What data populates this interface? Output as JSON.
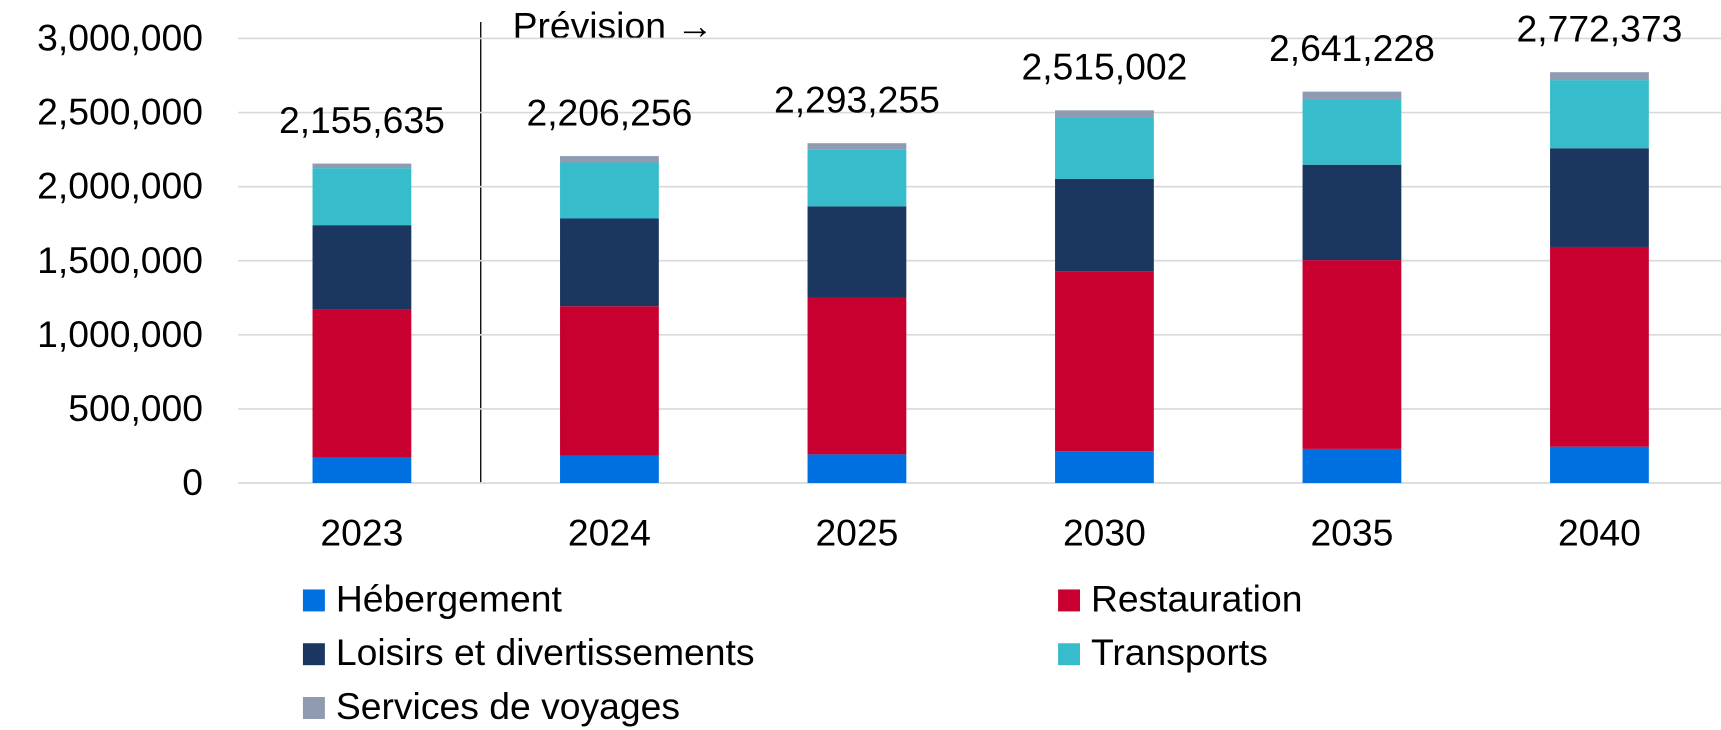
{
  "chart_data": {
    "type": "stacked_bar",
    "categories": [
      "2023",
      "2024",
      "2025",
      "2030",
      "2035",
      "2040"
    ],
    "series": [
      {
        "name": "Hébergement",
        "color": "#0070e0",
        "values": [
          170000,
          185000,
          193000,
          215000,
          230000,
          245000
        ]
      },
      {
        "name": "Restauration",
        "color": "#c8002f",
        "values": [
          1000000,
          1008000,
          1059000,
          1215000,
          1274000,
          1348000
        ]
      },
      {
        "name": "Loisirs et divertissements",
        "color": "#1b365f",
        "values": [
          570000,
          592000,
          615000,
          622000,
          644000,
          666000
        ]
      },
      {
        "name": "Transports",
        "color": "#37bccb",
        "values": [
          385000,
          378000,
          385000,
          415000,
          437000,
          460000
        ]
      },
      {
        "name": "Services de voyages",
        "color": "#8e9bb0",
        "values": [
          30635,
          43256,
          41255,
          48002,
          56228,
          53373
        ]
      }
    ],
    "totals": [
      2155635,
      2206256,
      2293255,
      2515002,
      2641228,
      2772373
    ],
    "total_labels": [
      "2,155,635",
      "2,206,256",
      "2,293,255",
      "2,515,002",
      "2,641,228",
      "2,772,373"
    ],
    "annotation": "Prévision →",
    "ylim": [
      0,
      3000000
    ],
    "yticks": [
      0,
      {
        "value": 500000,
        "label": "500,000"
      },
      {
        "value": 1000000,
        "label": "1,000,000"
      },
      {
        "value": 1500000,
        "label": "1,500,000"
      },
      {
        "value": 2000000,
        "label": "2,000,000"
      },
      {
        "value": 2500000,
        "label": "2,500,000"
      },
      {
        "value": 3000000,
        "label": "3,000,000"
      }
    ],
    "grid": true,
    "legend": "bottom"
  }
}
